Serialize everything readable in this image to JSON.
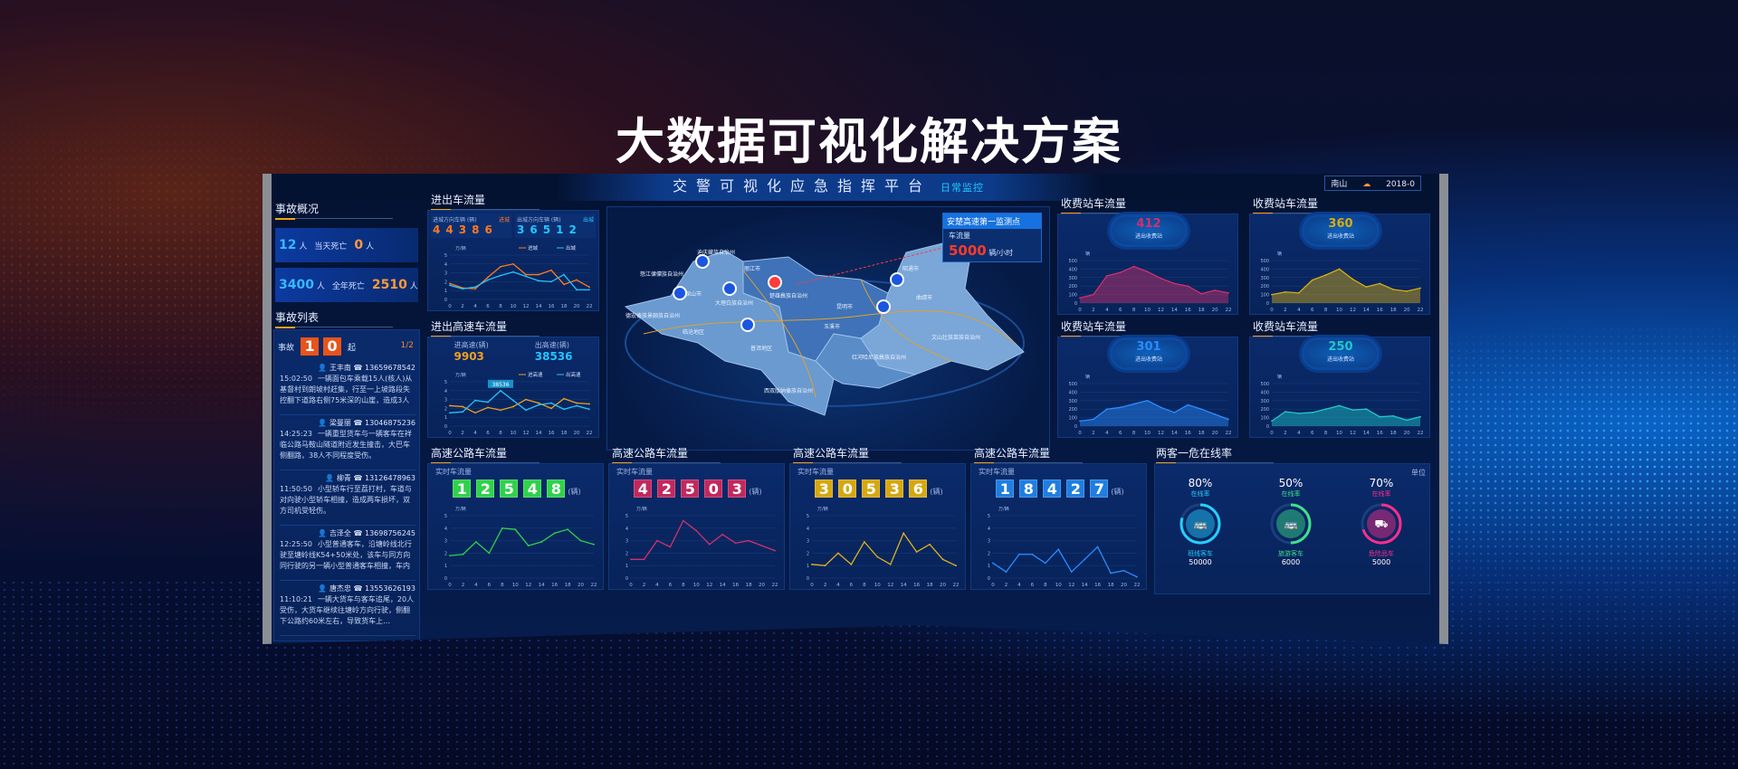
{
  "headline": "大数据可视化解决方案",
  "colors": {
    "orange": "#ff7a1f",
    "cyan": "#23c6ff",
    "green": "#2fd24a",
    "pink": "#d2306b",
    "yellow": "#e0b31a",
    "blue": "#2b8cff",
    "teal": "#20c9c9"
  },
  "platform": {
    "title": "交警可视化应急指挥平台",
    "mode": "日常监控",
    "location": "南山",
    "date": "2018-0"
  },
  "overview": {
    "title": "事故概况",
    "today_injured": "12",
    "today_dead_label": "当天死亡",
    "today_dead": "0",
    "year_injured": "3400",
    "year_dead_label": "全年死亡",
    "year_dead": "2510",
    "unit": "人"
  },
  "accidents": {
    "title": "事故列表",
    "count_label": "事故",
    "count_digits": [
      "1",
      "0"
    ],
    "count_unit": "起",
    "page": "1/2",
    "items": [
      {
        "name": "王丰南",
        "phone": "13659678542",
        "time": "15:02:50",
        "text": "一辆面包车乘载15人(核人)从基督村到朗坡村赶集，行至一上坡路段失控翻下道路右侧75米深的山崖，造成3人受伤。"
      },
      {
        "name": "梁曼丽",
        "phone": "13046875236",
        "time": "14:25:23",
        "text": "一辆重型货车与一辆客车在祥临公路马鞍山隧道附近发生撞击，大巴车侧翻路，38人不同程度受伤。"
      },
      {
        "name": "柳青",
        "phone": "13126478963",
        "time": "11:50:50",
        "text": "小型轿车行至荔打村，车道与对向驶小型轿车相撞，造成两车损坏，双方司机受轻伤。"
      },
      {
        "name": "吉泽全",
        "phone": "13698756245",
        "time": "12:25:50",
        "text": "小型普通客车，沿塘岭线北行驶至塘岭线K54+50米处，该车与同方向同行驶的另一辆小型普通客车相撞，车内约4人不同程度受伤。"
      },
      {
        "name": "唐杰忠",
        "phone": "13553626193",
        "time": "11:10:21",
        "text": "一辆大货车与客车追尾，20人受伤，大货车继续往塘岭方向行驶，侧翻下公路约60米左右，导致货车上…"
      }
    ]
  },
  "map": {
    "monitor_title": "安楚高速第一监测点",
    "flow_label": "车流量",
    "flow_value": "5000",
    "flow_unit": "辆/小时",
    "regions": [
      "迪庆藏族自治州",
      "丽江市",
      "怒江傈僳族自治州",
      "大理白族自治州",
      "保山市",
      "德宏傣族景颇族自治州",
      "临沧地区",
      "楚雄彝族自治州",
      "昆明市",
      "曲靖市",
      "昭通市",
      "玉溪市",
      "普洱地区",
      "红河哈尼族彝族自治州",
      "文山壮族苗族自治州",
      "西双版纳傣族自治州"
    ]
  },
  "chart_data": [
    {
      "id": "inout",
      "type": "line",
      "title": "进出车流量",
      "ylabel": "万/辆",
      "ylim": [
        0,
        5
      ],
      "x": [
        0,
        2,
        4,
        6,
        8,
        10,
        12,
        14,
        16,
        18,
        20,
        22
      ],
      "boxes": [
        {
          "label": "进城方向车辆 (辆)",
          "tag": "进城",
          "digits": [
            "4",
            "4",
            "3",
            "8",
            "6"
          ]
        },
        {
          "label": "出城方向车辆 (辆)",
          "tag": "出城",
          "digits": [
            "3",
            "6",
            "5",
            "1",
            "2"
          ]
        }
      ],
      "series": [
        {
          "name": "进城",
          "color": "#ff7a1f",
          "values": [
            1.8,
            1.3,
            1.2,
            2.5,
            3.7,
            4.0,
            2.8,
            2.8,
            3.3,
            1.7,
            2.2,
            1.4
          ]
        },
        {
          "name": "出城",
          "color": "#23c6ff",
          "values": [
            1.6,
            1.2,
            1.4,
            2.2,
            2.7,
            3.1,
            2.6,
            2.1,
            2.0,
            2.8,
            1.1,
            1.1
          ]
        }
      ]
    },
    {
      "id": "highway-inout",
      "type": "line",
      "title": "进出高速车流量",
      "ylabel": "万/辆",
      "ylim": [
        0,
        5
      ],
      "x": [
        0,
        2,
        4,
        6,
        8,
        10,
        12,
        14,
        16,
        18,
        20,
        22
      ],
      "stats": [
        {
          "label": "进高速(辆)",
          "value": "9903"
        },
        {
          "label": "出高速(辆)",
          "value": "38536"
        }
      ],
      "annotation": "38536",
      "series": [
        {
          "name": "进高速",
          "color": "#f0a020",
          "values": [
            2.3,
            2.2,
            1.5,
            2.1,
            1.8,
            2.2,
            3.0,
            2.6,
            2.0,
            3.1,
            2.6,
            2.5
          ]
        },
        {
          "name": "出高速",
          "color": "#23c6ff",
          "values": [
            1.5,
            1.6,
            2.9,
            2.7,
            4.0,
            2.9,
            1.8,
            2.4,
            2.6,
            1.9,
            2.3,
            1.9
          ]
        }
      ]
    },
    {
      "id": "hw1",
      "type": "line",
      "title": "高速公路车流量",
      "sub": "实时车流量",
      "digits": [
        "1",
        "2",
        "5",
        "4",
        "8"
      ],
      "unit": "(辆)",
      "ylabel": "万/辆",
      "ylim": [
        0,
        5
      ],
      "x": [
        0,
        2,
        4,
        6,
        8,
        10,
        12,
        14,
        16,
        18,
        20,
        22
      ],
      "color": "#2fd24a",
      "series": [
        {
          "color": "#2fd24a",
          "values": [
            1.8,
            1.9,
            2.9,
            2.0,
            4.0,
            3.9,
            2.6,
            2.9,
            3.6,
            3.9,
            3.0,
            2.7
          ]
        }
      ]
    },
    {
      "id": "hw2",
      "type": "line",
      "title": "高速公路车流量",
      "sub": "实时车流量",
      "digits": [
        "4",
        "2",
        "5",
        "0",
        "3"
      ],
      "unit": "(辆)",
      "ylabel": "万/辆",
      "ylim": [
        0,
        5
      ],
      "x": [
        0,
        2,
        4,
        6,
        8,
        10,
        12,
        14,
        16,
        18,
        20,
        22
      ],
      "color": "#c2285e",
      "series": [
        {
          "color": "#d2306b",
          "values": [
            1.5,
            1.5,
            3.0,
            2.5,
            4.6,
            3.8,
            2.7,
            3.5,
            2.8,
            3.0,
            2.6,
            2.2
          ]
        }
      ]
    },
    {
      "id": "hw3",
      "type": "line",
      "title": "高速公路车流量",
      "sub": "实时车流量",
      "digits": [
        "3",
        "0",
        "5",
        "3",
        "6"
      ],
      "unit": "(辆)",
      "ylabel": "万/辆",
      "ylim": [
        0,
        5
      ],
      "x": [
        0,
        2,
        4,
        6,
        8,
        10,
        12,
        14,
        16,
        18,
        20,
        22
      ],
      "color": "#d6a810",
      "series": [
        {
          "color": "#e0b31a",
          "values": [
            1.1,
            1.0,
            2.0,
            1.1,
            2.9,
            1.7,
            1.1,
            3.6,
            2.1,
            2.7,
            1.5,
            1.0
          ]
        }
      ]
    },
    {
      "id": "hw4",
      "type": "line",
      "title": "高速公路车流量",
      "sub": "实时车流量",
      "digits": [
        "1",
        "8",
        "4",
        "2",
        "7"
      ],
      "unit": "(辆)",
      "ylabel": "万/辆",
      "ylim": [
        0,
        5
      ],
      "x": [
        0,
        2,
        4,
        6,
        8,
        10,
        12,
        14,
        16,
        18,
        20,
        22
      ],
      "color": "#1f7ee0",
      "series": [
        {
          "color": "#2b8cff",
          "values": [
            1.2,
            0.5,
            1.9,
            1.9,
            1.2,
            2.3,
            0.5,
            1.5,
            2.5,
            0.4,
            0.6,
            0.1
          ]
        }
      ]
    },
    {
      "id": "toll1",
      "type": "area",
      "title": "收费站车流量",
      "value": "412",
      "value_label": "进出收费站",
      "ylabel": "辆",
      "ylim": [
        0,
        500
      ],
      "x": [
        0,
        2,
        4,
        6,
        8,
        10,
        12,
        14,
        16,
        18,
        20,
        22
      ],
      "color": "#c2306b",
      "series": [
        {
          "color": "#d2306b",
          "values": [
            60,
            100,
            320,
            360,
            430,
            370,
            290,
            230,
            200,
            110,
            150,
            120
          ]
        }
      ]
    },
    {
      "id": "toll2",
      "type": "area",
      "title": "收费站车流量",
      "value": "360",
      "value_label": "进出收费站",
      "ylabel": "辆",
      "ylim": [
        0,
        500
      ],
      "x": [
        0,
        2,
        4,
        6,
        8,
        10,
        12,
        14,
        16,
        18,
        20,
        22
      ],
      "color": "#c9a010",
      "series": [
        {
          "color": "#d6ad12",
          "values": [
            100,
            130,
            120,
            270,
            330,
            400,
            280,
            190,
            230,
            160,
            140,
            175
          ]
        }
      ]
    },
    {
      "id": "toll3",
      "type": "area",
      "title": "收费站车流量",
      "value": "301",
      "value_label": "进出收费站",
      "ylabel": "辆",
      "ylim": [
        0,
        500
      ],
      "x": [
        0,
        2,
        4,
        6,
        8,
        10,
        12,
        14,
        16,
        18,
        20,
        22
      ],
      "color": "#2b8cff",
      "series": [
        {
          "color": "#2b8cff",
          "values": [
            60,
            80,
            200,
            220,
            260,
            300,
            220,
            160,
            250,
            200,
            140,
            80
          ]
        }
      ]
    },
    {
      "id": "toll4",
      "type": "area",
      "title": "收费站车流量",
      "value": "250",
      "value_label": "进出收费站",
      "ylabel": "辆",
      "ylim": [
        0,
        500
      ],
      "x": [
        0,
        2,
        4,
        6,
        8,
        10,
        12,
        14,
        16,
        18,
        20,
        22
      ],
      "color": "#20c9c9",
      "series": [
        {
          "color": "#20c9c9",
          "values": [
            60,
            170,
            150,
            160,
            200,
            240,
            190,
            200,
            110,
            120,
            70,
            110
          ]
        }
      ]
    }
  ],
  "online": {
    "title": "两客一危在线率",
    "unit_label": "单位",
    "items": [
      {
        "pct": "80%",
        "pct_value": 80,
        "label": "在线率",
        "name": "班线客车",
        "count": "50000",
        "color": "#23d0ff",
        "icon": "bus-icon"
      },
      {
        "pct": "50%",
        "pct_value": 50,
        "label": "在线率",
        "name": "旅游客车",
        "count": "6000",
        "color": "#3fe08a",
        "icon": "coach-icon"
      },
      {
        "pct": "70%",
        "pct_value": 70,
        "label": "在线率",
        "name": "危险品车",
        "count": "5000",
        "color": "#ff2d8a",
        "icon": "truck-icon"
      }
    ]
  }
}
